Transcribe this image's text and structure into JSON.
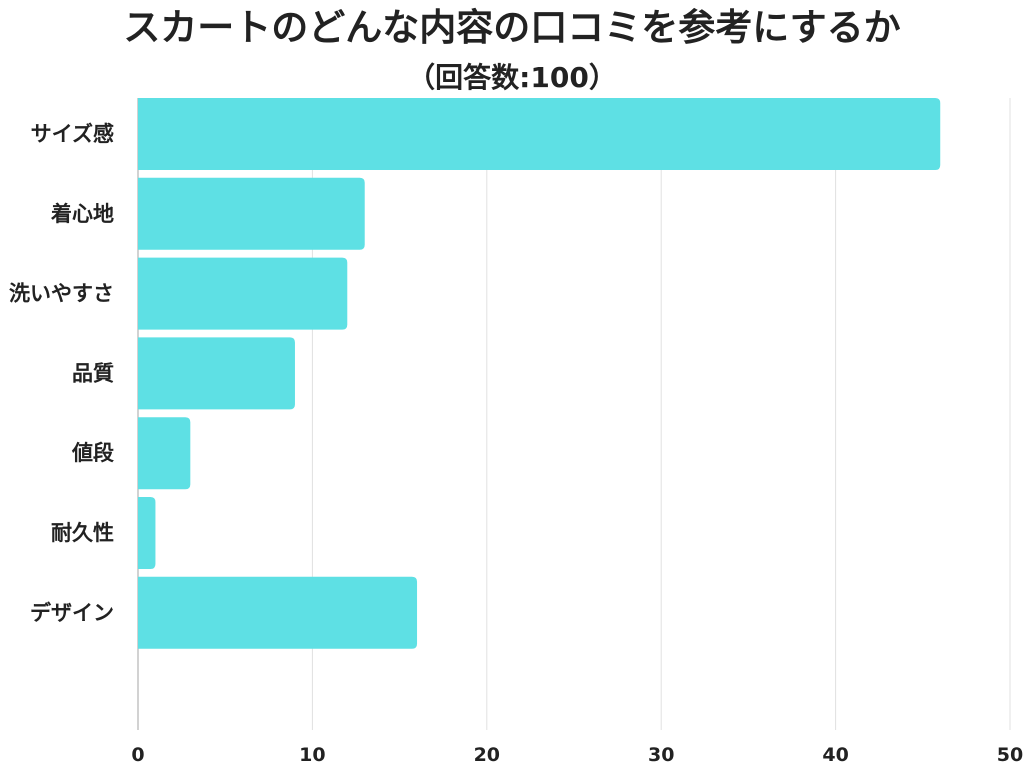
{
  "chart_data": {
    "type": "bar",
    "orientation": "horizontal",
    "title": "スカートのどんな内容の口コミを参考にするか",
    "subtitle": "（回答数:100）",
    "categories": [
      "サイズ感",
      "着心地",
      "洗いやすさ",
      "品質",
      "値段",
      "耐久性",
      "デザイン"
    ],
    "values": [
      46,
      13,
      12,
      9,
      3,
      1,
      16
    ],
    "xlim": [
      0,
      50
    ],
    "xticks": [
      0,
      10,
      20,
      30,
      40,
      50
    ],
    "grid": true,
    "colors": {
      "bar": "#5ee0e4",
      "grid": "#e0e0e0",
      "axis": "#c4c4c4"
    }
  }
}
